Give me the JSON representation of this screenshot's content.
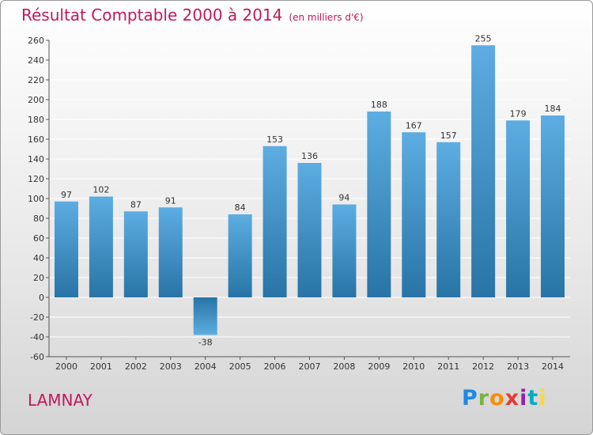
{
  "chart_data": {
    "type": "bar",
    "title": "Résultat Comptable 2000 à 2014",
    "subtitle": "(en milliers d'€)",
    "categories": [
      "2000",
      "2001",
      "2002",
      "2003",
      "2004",
      "2005",
      "2006",
      "2007",
      "2008",
      "2009",
      "2010",
      "2011",
      "2012",
      "2013",
      "2014"
    ],
    "values": [
      97,
      102,
      87,
      91,
      -38,
      84,
      153,
      136,
      94,
      188,
      167,
      157,
      255,
      179,
      184
    ],
    "ylim": [
      -60,
      260
    ],
    "yticks": [
      -60,
      -40,
      -20,
      0,
      20,
      40,
      60,
      80,
      100,
      120,
      140,
      160,
      180,
      200,
      220,
      240,
      260
    ],
    "xlabel": "",
    "ylabel": "",
    "grid": true
  },
  "commune": "LAMNAY",
  "logo": {
    "letters": [
      "P",
      "r",
      "o",
      "x",
      "i",
      "t",
      "i"
    ]
  },
  "colors": {
    "title": "#c2185b",
    "bar_top": "#5dade2",
    "bar_bottom": "#2874a6",
    "grid": "#ffffff"
  }
}
